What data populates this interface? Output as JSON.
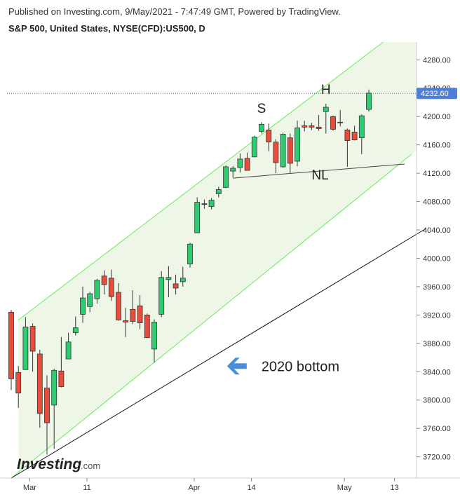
{
  "header": {
    "published": "Published on Investing.com, 9/May/2021 - 7:47:49 GMT, Powered by TradingView.",
    "symbol": "S&P 500, United States, NYSE(CFD):US500, D"
  },
  "logo": {
    "brand": "Investing",
    "suffix": ".com"
  },
  "colors": {
    "up": "#2ecc71",
    "down": "#e74c3c",
    "channel": "#66ee55",
    "channel_fill": "#eef6e8",
    "arrow": "#4a8fd4",
    "price_badge": "#4f7ed9"
  },
  "chart_data": {
    "type": "candlestick",
    "ylim": [
      3690,
      4305
    ],
    "y_ticks": [
      3720,
      3760,
      3800,
      3840,
      3880,
      3920,
      3960,
      4000,
      4040,
      4080,
      4120,
      4160,
      4200,
      4240,
      4280
    ],
    "y_tick_labels": [
      "3720.00",
      "3760.00",
      "3800.00",
      "3840.00",
      "3880.00",
      "3920.00",
      "3960.00",
      "4000.00",
      "4040.00",
      "4080.00",
      "4120.00",
      "4160.00",
      "4200.00",
      "4240.00",
      "4280.00"
    ],
    "x_labels": [
      {
        "label": "Mar",
        "index": 2
      },
      {
        "label": "11",
        "index": 10
      },
      {
        "label": "Apr",
        "index": 25
      },
      {
        "label": "14",
        "index": 33
      },
      {
        "label": "May",
        "index": 46
      },
      {
        "label": "13",
        "index": 53
      }
    ],
    "last_price": 4232.6,
    "last_price_label": "4232.60",
    "candles": [
      {
        "o": 3924,
        "h": 3927,
        "l": 3814,
        "c": 3830
      },
      {
        "o": 3839,
        "h": 3848,
        "l": 3789,
        "c": 3810
      },
      {
        "o": 3843,
        "h": 3917,
        "l": 3843,
        "c": 3903
      },
      {
        "o": 3904,
        "h": 3908,
        "l": 3840,
        "c": 3869
      },
      {
        "o": 3865,
        "h": 3871,
        "l": 3761,
        "c": 3781
      },
      {
        "o": 3817,
        "h": 3835,
        "l": 3723,
        "c": 3768
      },
      {
        "o": 3793,
        "h": 3844,
        "l": 3731,
        "c": 3842
      },
      {
        "o": 3841,
        "h": 3889,
        "l": 3818,
        "c": 3819
      },
      {
        "o": 3858,
        "h": 3895,
        "l": 3858,
        "c": 3882
      },
      {
        "o": 3895,
        "h": 3918,
        "l": 3891,
        "c": 3902
      },
      {
        "o": 3921,
        "h": 3960,
        "l": 3909,
        "c": 3944
      },
      {
        "o": 3932,
        "h": 3953,
        "l": 3924,
        "c": 3950
      },
      {
        "o": 3943,
        "h": 3971,
        "l": 3936,
        "c": 3969
      },
      {
        "o": 3975,
        "h": 3983,
        "l": 3949,
        "c": 3963
      },
      {
        "o": 3972,
        "h": 3984,
        "l": 3940,
        "c": 3946
      },
      {
        "o": 3952,
        "h": 3965,
        "l": 3912,
        "c": 3913
      },
      {
        "o": 3912,
        "h": 3930,
        "l": 3889,
        "c": 3910
      },
      {
        "o": 3928,
        "h": 3955,
        "l": 3907,
        "c": 3911
      },
      {
        "o": 3933,
        "h": 3948,
        "l": 3900,
        "c": 3909
      },
      {
        "o": 3920,
        "h": 3922,
        "l": 3888,
        "c": 3888
      },
      {
        "o": 3872,
        "h": 3914,
        "l": 3853,
        "c": 3910
      },
      {
        "o": 3921,
        "h": 3982,
        "l": 3917,
        "c": 3973
      },
      {
        "o": 3970,
        "h": 3989,
        "l": 3945,
        "c": 3973
      },
      {
        "o": 3964,
        "h": 3977,
        "l": 3949,
        "c": 3958
      },
      {
        "o": 3967,
        "h": 3988,
        "l": 3960,
        "c": 3972
      },
      {
        "o": 3992,
        "h": 4022,
        "l": 3987,
        "c": 4020
      },
      {
        "o": 4036,
        "h": 4086,
        "l": 4036,
        "c": 4079
      },
      {
        "o": 4077,
        "h": 4083,
        "l": 4070,
        "c": 4076
      },
      {
        "o": 4073,
        "h": 4085,
        "l": 4069,
        "c": 4082
      },
      {
        "o": 4091,
        "h": 4101,
        "l": 4086,
        "c": 4097
      },
      {
        "o": 4100,
        "h": 4131,
        "l": 4099,
        "c": 4129
      },
      {
        "o": 4123,
        "h": 4130,
        "l": 4114,
        "c": 4127
      },
      {
        "o": 4128,
        "h": 4148,
        "l": 4121,
        "c": 4140
      },
      {
        "o": 4141,
        "h": 4149,
        "l": 4124,
        "c": 4124
      },
      {
        "o": 4143,
        "h": 4173,
        "l": 4143,
        "c": 4171
      },
      {
        "o": 4179,
        "h": 4192,
        "l": 4176,
        "c": 4189
      },
      {
        "o": 4181,
        "h": 4190,
        "l": 4151,
        "c": 4164
      },
      {
        "o": 4164,
        "h": 4168,
        "l": 4120,
        "c": 4135
      },
      {
        "o": 4129,
        "h": 4177,
        "l": 4128,
        "c": 4175
      },
      {
        "o": 4170,
        "h": 4176,
        "l": 4120,
        "c": 4134
      },
      {
        "o": 4137,
        "h": 4194,
        "l": 4130,
        "c": 4184
      },
      {
        "o": 4187,
        "h": 4194,
        "l": 4179,
        "c": 4185
      },
      {
        "o": 4187,
        "h": 4191,
        "l": 4181,
        "c": 4185
      },
      {
        "o": 4185,
        "h": 4202,
        "l": 4180,
        "c": 4183
      },
      {
        "o": 4207,
        "h": 4218,
        "l": 4176,
        "c": 4213
      },
      {
        "o": 4200,
        "h": 4201,
        "l": 4180,
        "c": 4182
      },
      {
        "o": 4191,
        "h": 4209,
        "l": 4186,
        "c": 4192
      },
      {
        "o": 4181,
        "h": 4183,
        "l": 4129,
        "c": 4166
      },
      {
        "o": 4178,
        "h": 4187,
        "l": 4166,
        "c": 4167
      },
      {
        "o": 4170,
        "h": 4203,
        "l": 4147,
        "c": 4201
      },
      {
        "o": 4210,
        "h": 4238,
        "l": 4207,
        "c": 4233
      }
    ],
    "channel": {
      "upper": [
        {
          "index": 1,
          "y": 3913
        },
        {
          "index": 52,
          "y": 4305
        }
      ],
      "lower": [
        {
          "index": 0,
          "y": 3690
        },
        {
          "index": 56,
          "y": 4147
        }
      ]
    },
    "trendline": [
      {
        "index": 0,
        "y": 3690
      },
      {
        "index": 58,
        "y": 4042
      }
    ],
    "neckline": [
      {
        "index": 31,
        "y": 4113
      },
      {
        "index": 55,
        "y": 4133
      }
    ],
    "annotations": [
      {
        "text": "S",
        "index": 35,
        "y": 4205
      },
      {
        "text": "H",
        "index": 44,
        "y": 4232
      },
      {
        "text": "NL",
        "index": 42,
        "y": 4111
      },
      {
        "text": "2020 bottom",
        "index": 34,
        "y": 3842
      }
    ]
  }
}
